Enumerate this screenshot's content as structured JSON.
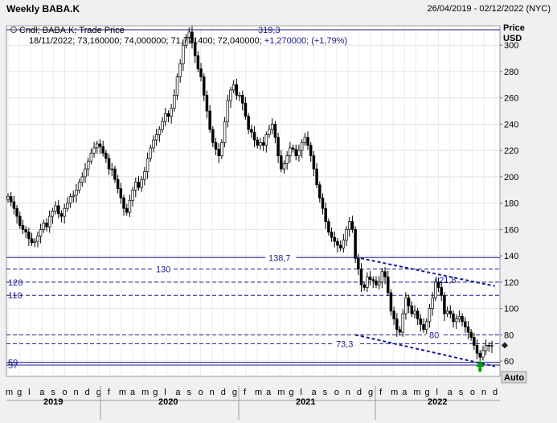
{
  "header": {
    "title": "Weekly BABA.K",
    "date_range": "26/04/2019 - 02/12/2022 (NYC)"
  },
  "legend": {
    "line1": "Cndl; BABA.K; Trade Price",
    "line2": "18/11/2022; 73,160000; 74,000000; 71,721400; 72,040000; +1,270000; (+1,79%)",
    "high_marker": "319,3"
  },
  "axis": {
    "price_title": "Price",
    "currency": "USD",
    "auto_button": "Auto"
  },
  "colors": {
    "navy": "#1a1a8c",
    "candle": "#000000",
    "arrow": "#00a000"
  },
  "chart_data": {
    "type": "candlestick",
    "ylim": [
      50,
      320
    ],
    "yticks": [
      60,
      80,
      100,
      120,
      140,
      160,
      180,
      200,
      220,
      240,
      260,
      280,
      300
    ],
    "month_ticks": [
      "m",
      "g",
      "l",
      "a",
      "s",
      "o",
      "n",
      "d",
      "g",
      "f",
      "m",
      "a",
      "m",
      "g",
      "l",
      "a",
      "s",
      "o",
      "n",
      "d",
      "g",
      "f",
      "m",
      "a",
      "m",
      "g",
      "l",
      "a",
      "s",
      "o",
      "n",
      "d",
      "g",
      "f",
      "m",
      "a",
      "m",
      "g",
      "l",
      "a",
      "s",
      "o",
      "n",
      "d"
    ],
    "years": [
      "2019",
      "2020",
      "2021",
      "2022"
    ],
    "weekly_close": [
      185,
      181,
      176,
      170,
      163,
      160,
      158,
      153,
      150,
      151,
      155,
      160,
      165,
      162,
      170,
      174,
      178,
      172,
      170,
      176,
      180,
      185,
      186,
      190,
      196,
      200,
      206,
      212,
      218,
      222,
      225,
      223,
      218,
      214,
      206,
      206,
      198,
      191,
      184,
      176,
      173,
      182,
      190,
      196,
      192,
      198,
      204,
      214,
      222,
      228,
      232,
      236,
      242,
      248,
      246,
      252,
      262,
      276,
      286,
      300,
      306,
      310,
      302,
      292,
      282,
      276,
      262,
      250,
      236,
      226,
      221,
      216,
      226,
      242,
      258,
      266,
      270,
      262,
      262,
      256,
      246,
      236,
      234,
      228,
      224,
      226,
      224,
      232,
      236,
      240,
      230,
      216,
      206,
      210,
      216,
      222,
      221,
      216,
      220,
      226,
      230,
      224,
      216,
      206,
      194,
      184,
      176,
      166,
      158,
      154,
      151,
      148,
      146,
      152,
      160,
      166,
      160,
      138,
      130,
      118,
      116,
      124,
      122,
      121,
      118,
      120,
      128,
      124,
      112,
      98,
      92,
      84,
      82,
      96,
      108,
      102,
      96,
      98,
      92,
      88,
      84,
      90,
      100,
      108,
      120,
      116,
      110,
      96,
      98,
      96,
      90,
      92,
      94,
      90,
      86,
      82,
      78,
      72,
      66,
      63,
      68,
      72,
      71.6,
      72.04
    ],
    "series": [],
    "horizontal_lines": [
      {
        "value": 319.3,
        "label": "319,3",
        "style": "solid"
      },
      {
        "value": 138.7,
        "label": "138,7",
        "style": "solid"
      },
      {
        "value": 130,
        "label": "130",
        "style": "dashed"
      },
      {
        "value": 120,
        "label": "120",
        "style": "dashed"
      },
      {
        "value": 110,
        "label": "110",
        "style": "dashed"
      },
      {
        "value": 80,
        "label": "80",
        "style": "dashed"
      },
      {
        "value": 73.3,
        "label": "73,3",
        "style": "dashed"
      },
      {
        "value": 59,
        "label": "59",
        "style": "solid"
      },
      {
        "value": 57,
        "label": "57",
        "style": "solid"
      }
    ],
    "annotations": [
      {
        "label": "121,8",
        "value": 121.8
      }
    ],
    "trendlines": [
      {
        "from": [
          117,
          139
        ],
        "to": [
          164,
          117
        ]
      },
      {
        "from": [
          117,
          80
        ],
        "to": [
          164,
          56
        ]
      }
    ],
    "last_price": 72.04
  }
}
